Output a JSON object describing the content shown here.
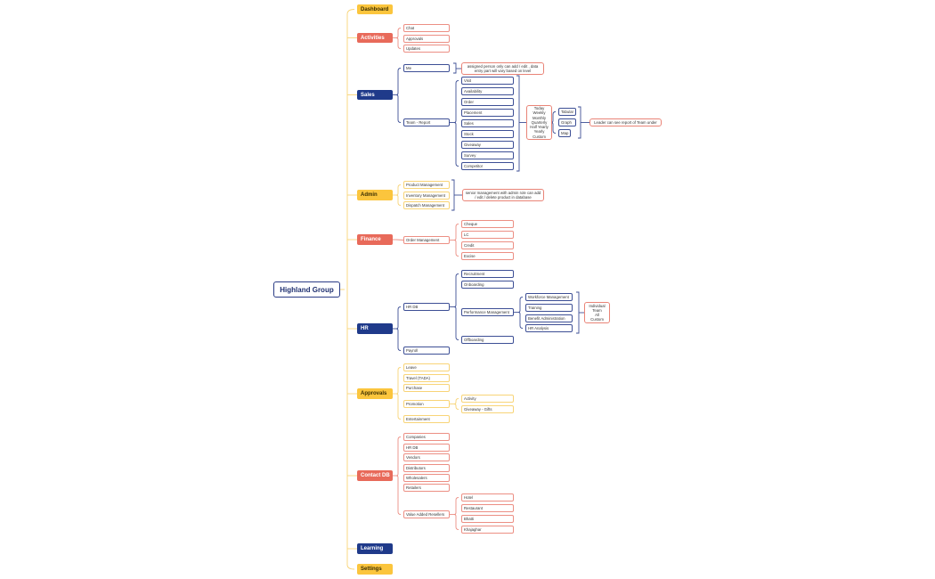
{
  "root": {
    "label": "Highland Group"
  },
  "dashboard": {
    "label": "Dashboard"
  },
  "activities": {
    "label": "Activities",
    "items": [
      "Chat",
      "Approvals",
      "Updates"
    ]
  },
  "sales": {
    "label": "Sales",
    "me": "Me",
    "me_note": "assigned person only can add / edit , data entry part will vary based on level",
    "team_report": "Team - Report",
    "team_items": [
      "Visit",
      "Availability",
      "Order",
      "Placement",
      "Sales",
      "Stock",
      "Giveaway",
      "Survey",
      "Competitor"
    ],
    "periods": [
      "Today",
      "Weekly",
      "Monthly",
      "Quarterly",
      "Half Yearly",
      "Yearly",
      "Custom"
    ],
    "views": [
      "Tabular",
      "Graph",
      "Map"
    ],
    "leader_note": "Leader can see report of Team under"
  },
  "admin": {
    "label": "Admin",
    "items": [
      "Product Management",
      "Inventory Management",
      "Dispatch Management"
    ],
    "note": "senior management with admin role can add / edit / delete product in database"
  },
  "finance": {
    "label": "Finance",
    "order_management": "Order Management",
    "items": [
      "Cheque",
      "LC",
      "Credit",
      "Excise"
    ]
  },
  "hr": {
    "label": "HR",
    "hr_db": "HR DB",
    "hr_db_items": [
      "Recruitment",
      "Onboarding",
      "Performance Management",
      "Offboarding"
    ],
    "performance_items": [
      "Workforce Management",
      "Training",
      "Benefit Administration",
      "HR Analysis"
    ],
    "scope": [
      "Individual",
      "Team",
      "All",
      "Custom"
    ],
    "payroll": "Payroll"
  },
  "approvals": {
    "label": "Approvals",
    "items": [
      "Leave",
      "Travel (TADA)",
      "Purchase",
      "Promotion",
      "Entertainment"
    ],
    "promotion_items": [
      "Activity",
      "Giveaway - Gifts"
    ]
  },
  "contact_db": {
    "label": "Contact DB",
    "items": [
      "Companies",
      "HR DB",
      "Vendors",
      "Distributors",
      "Wholesalers",
      "Retailers",
      "Value Added Resellers"
    ],
    "var_items": [
      "Hotel",
      "Restaurant",
      "Bhatti",
      "Khajaghar"
    ]
  },
  "learning": {
    "label": "Learning"
  },
  "settings": {
    "label": "Settings"
  },
  "colors": {
    "yellow": "#FBC53D",
    "red": "#E86A5A",
    "navy": "#1F3A8A",
    "yellow_line": "#F8D477",
    "red_line": "#EC8F84",
    "navy_line": "#3D4F95"
  }
}
